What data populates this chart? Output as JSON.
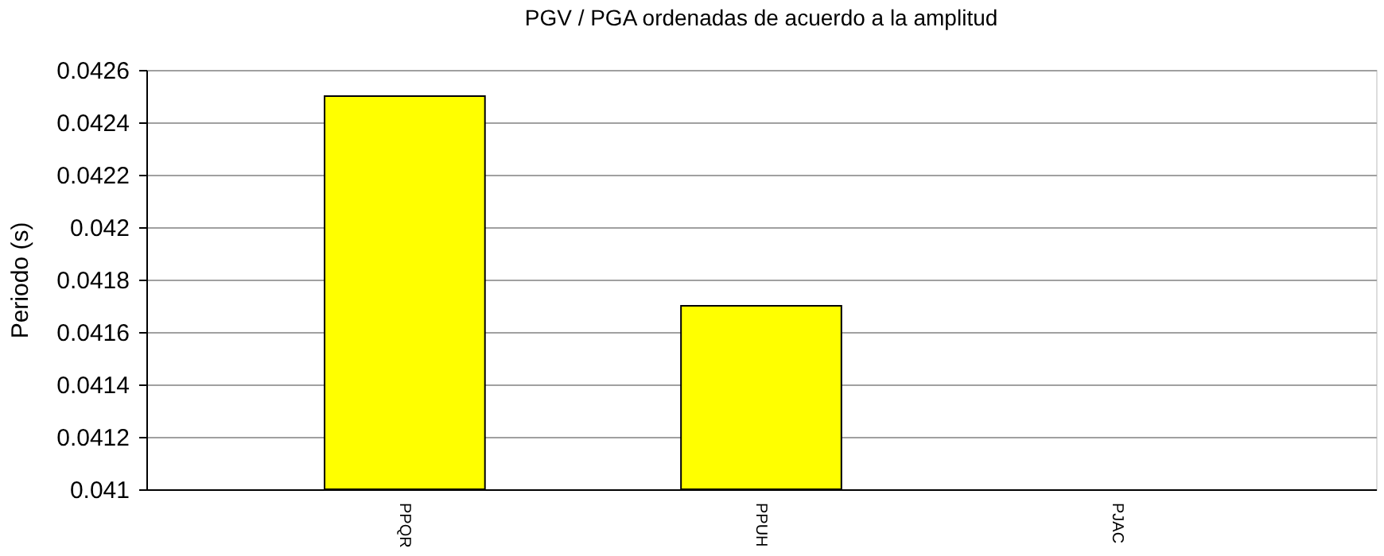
{
  "chart_data": {
    "type": "bar",
    "title": "PGV / PGA ordenadas de acuerdo a la amplitud",
    "ylabel": "Periodo (s)",
    "categories": [
      "PPQR",
      "PPUH",
      "PJAC"
    ],
    "values": [
      0.0425,
      0.0417,
      null
    ],
    "color": "#ffff00",
    "ylim": [
      0.041,
      0.0426
    ],
    "yticks": [
      0.041,
      0.0412,
      0.0414,
      0.0416,
      0.0418,
      0.042,
      0.0422,
      0.0424,
      0.0426
    ],
    "grid": "y"
  }
}
